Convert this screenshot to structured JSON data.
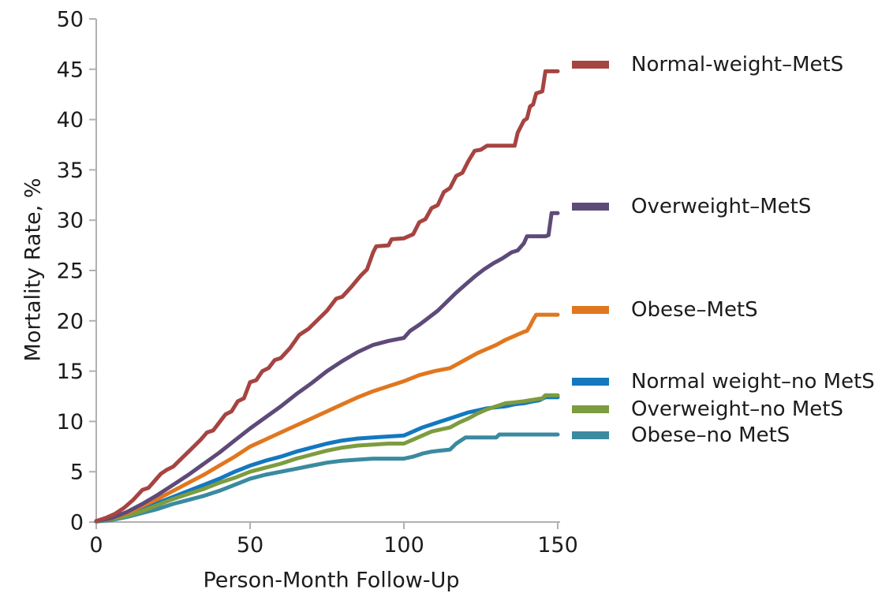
{
  "figure": {
    "background": "#ffffff",
    "axis_color": "#b0b0b0",
    "text_color": "#1c1c1c"
  },
  "chart_data": {
    "type": "line",
    "title": "",
    "xlabel": "Person-Month Follow-Up",
    "ylabel": "Mortality Rate, %",
    "xlim": [
      0,
      150
    ],
    "ylim": [
      0,
      50
    ],
    "x_ticks": [
      0,
      50,
      100,
      150
    ],
    "y_ticks": [
      0,
      5,
      10,
      15,
      20,
      25,
      30,
      35,
      40,
      45,
      50
    ],
    "grid": false,
    "legend_position": "right",
    "series": [
      {
        "name": "Normal-weight–MetS",
        "slug": "normal-weight-mets",
        "color": "#a64442",
        "points": [
          [
            0,
            0.1
          ],
          [
            3,
            0.4
          ],
          [
            6,
            0.8
          ],
          [
            9,
            1.4
          ],
          [
            12,
            2.2
          ],
          [
            15,
            3.2
          ],
          [
            17,
            3.4
          ],
          [
            19,
            4.1
          ],
          [
            21,
            4.8
          ],
          [
            23,
            5.2
          ],
          [
            25,
            5.5
          ],
          [
            28,
            6.4
          ],
          [
            31,
            7.3
          ],
          [
            34,
            8.2
          ],
          [
            36,
            8.9
          ],
          [
            38,
            9.1
          ],
          [
            40,
            9.9
          ],
          [
            42,
            10.7
          ],
          [
            44,
            11.0
          ],
          [
            46,
            12.0
          ],
          [
            48,
            12.3
          ],
          [
            50,
            13.9
          ],
          [
            52,
            14.1
          ],
          [
            54,
            15.0
          ],
          [
            56,
            15.3
          ],
          [
            58,
            16.1
          ],
          [
            60,
            16.3
          ],
          [
            63,
            17.3
          ],
          [
            66,
            18.6
          ],
          [
            69,
            19.2
          ],
          [
            72,
            20.1
          ],
          [
            75,
            21.0
          ],
          [
            78,
            22.2
          ],
          [
            80,
            22.4
          ],
          [
            83,
            23.4
          ],
          [
            86,
            24.5
          ],
          [
            88,
            25.1
          ],
          [
            90,
            26.8
          ],
          [
            91,
            27.4
          ],
          [
            95,
            27.5
          ],
          [
            96,
            28.1
          ],
          [
            100,
            28.2
          ],
          [
            103,
            28.6
          ],
          [
            105,
            29.8
          ],
          [
            107,
            30.1
          ],
          [
            109,
            31.2
          ],
          [
            111,
            31.5
          ],
          [
            113,
            32.8
          ],
          [
            115,
            33.2
          ],
          [
            117,
            34.4
          ],
          [
            119,
            34.7
          ],
          [
            121,
            35.9
          ],
          [
            123,
            36.9
          ],
          [
            125,
            37.0
          ],
          [
            127,
            37.4
          ],
          [
            136,
            37.4
          ],
          [
            137,
            38.7
          ],
          [
            139,
            39.9
          ],
          [
            140,
            40.1
          ],
          [
            141,
            41.3
          ],
          [
            142,
            41.5
          ],
          [
            143,
            42.6
          ],
          [
            145,
            42.8
          ],
          [
            146,
            44.8
          ],
          [
            150,
            44.8
          ]
        ]
      },
      {
        "name": "Overweight–MetS",
        "slug": "overweight-mets",
        "color": "#5e4a78",
        "points": [
          [
            0,
            0.1
          ],
          [
            5,
            0.4
          ],
          [
            10,
            1.0
          ],
          [
            15,
            1.8
          ],
          [
            20,
            2.7
          ],
          [
            25,
            3.7
          ],
          [
            30,
            4.7
          ],
          [
            35,
            5.8
          ],
          [
            40,
            6.9
          ],
          [
            45,
            8.1
          ],
          [
            50,
            9.3
          ],
          [
            55,
            10.4
          ],
          [
            60,
            11.5
          ],
          [
            65,
            12.7
          ],
          [
            70,
            13.8
          ],
          [
            75,
            15.0
          ],
          [
            80,
            16.0
          ],
          [
            85,
            16.9
          ],
          [
            90,
            17.6
          ],
          [
            95,
            18.0
          ],
          [
            100,
            18.3
          ],
          [
            102,
            19.0
          ],
          [
            105,
            19.6
          ],
          [
            108,
            20.3
          ],
          [
            111,
            21.0
          ],
          [
            114,
            21.9
          ],
          [
            117,
            22.8
          ],
          [
            120,
            23.6
          ],
          [
            123,
            24.4
          ],
          [
            126,
            25.1
          ],
          [
            129,
            25.7
          ],
          [
            132,
            26.2
          ],
          [
            135,
            26.8
          ],
          [
            137,
            27.0
          ],
          [
            139,
            27.7
          ],
          [
            140,
            28.4
          ],
          [
            146,
            28.4
          ],
          [
            147,
            28.5
          ],
          [
            148,
            30.7
          ],
          [
            150,
            30.7
          ]
        ]
      },
      {
        "name": "Obese–MetS",
        "slug": "obese-mets",
        "color": "#e0771f",
        "points": [
          [
            0,
            0.1
          ],
          [
            5,
            0.4
          ],
          [
            10,
            0.9
          ],
          [
            15,
            1.6
          ],
          [
            20,
            2.3
          ],
          [
            25,
            3.1
          ],
          [
            30,
            3.9
          ],
          [
            35,
            4.7
          ],
          [
            40,
            5.6
          ],
          [
            45,
            6.5
          ],
          [
            50,
            7.5
          ],
          [
            55,
            8.2
          ],
          [
            60,
            8.9
          ],
          [
            65,
            9.6
          ],
          [
            70,
            10.3
          ],
          [
            75,
            11.0
          ],
          [
            80,
            11.7
          ],
          [
            85,
            12.4
          ],
          [
            90,
            13.0
          ],
          [
            95,
            13.5
          ],
          [
            100,
            14.0
          ],
          [
            105,
            14.6
          ],
          [
            110,
            15.0
          ],
          [
            115,
            15.3
          ],
          [
            118,
            15.8
          ],
          [
            121,
            16.3
          ],
          [
            124,
            16.8
          ],
          [
            127,
            17.2
          ],
          [
            130,
            17.6
          ],
          [
            133,
            18.1
          ],
          [
            136,
            18.5
          ],
          [
            139,
            18.9
          ],
          [
            140,
            19.0
          ],
          [
            141,
            19.5
          ],
          [
            142,
            20.1
          ],
          [
            143,
            20.6
          ],
          [
            150,
            20.6
          ]
        ]
      },
      {
        "name": "Normal weight–no MetS",
        "slug": "normal-weight-no-mets",
        "color": "#1378bf",
        "points": [
          [
            0,
            0.1
          ],
          [
            5,
            0.3
          ],
          [
            10,
            0.7
          ],
          [
            15,
            1.3
          ],
          [
            20,
            1.9
          ],
          [
            25,
            2.5
          ],
          [
            30,
            3.1
          ],
          [
            35,
            3.7
          ],
          [
            40,
            4.3
          ],
          [
            45,
            5.0
          ],
          [
            50,
            5.6
          ],
          [
            55,
            6.1
          ],
          [
            60,
            6.5
          ],
          [
            65,
            7.0
          ],
          [
            70,
            7.4
          ],
          [
            75,
            7.8
          ],
          [
            80,
            8.1
          ],
          [
            85,
            8.3
          ],
          [
            90,
            8.4
          ],
          [
            95,
            8.5
          ],
          [
            100,
            8.6
          ],
          [
            103,
            9.0
          ],
          [
            106,
            9.4
          ],
          [
            109,
            9.7
          ],
          [
            112,
            10.0
          ],
          [
            115,
            10.3
          ],
          [
            118,
            10.6
          ],
          [
            121,
            10.9
          ],
          [
            124,
            11.1
          ],
          [
            127,
            11.3
          ],
          [
            130,
            11.4
          ],
          [
            133,
            11.5
          ],
          [
            136,
            11.7
          ],
          [
            139,
            11.8
          ],
          [
            142,
            12.0
          ],
          [
            144,
            12.1
          ],
          [
            146,
            12.4
          ],
          [
            150,
            12.4
          ]
        ]
      },
      {
        "name": "Overweight–no MetS",
        "slug": "overweight-no-mets",
        "color": "#7d9c3f",
        "points": [
          [
            0,
            0.1
          ],
          [
            5,
            0.3
          ],
          [
            10,
            0.6
          ],
          [
            15,
            1.1
          ],
          [
            20,
            1.7
          ],
          [
            25,
            2.3
          ],
          [
            30,
            2.8
          ],
          [
            35,
            3.3
          ],
          [
            40,
            3.9
          ],
          [
            45,
            4.4
          ],
          [
            50,
            5.0
          ],
          [
            55,
            5.4
          ],
          [
            60,
            5.8
          ],
          [
            65,
            6.3
          ],
          [
            70,
            6.7
          ],
          [
            75,
            7.1
          ],
          [
            80,
            7.4
          ],
          [
            85,
            7.6
          ],
          [
            90,
            7.7
          ],
          [
            95,
            7.8
          ],
          [
            100,
            7.8
          ],
          [
            103,
            8.2
          ],
          [
            106,
            8.6
          ],
          [
            109,
            9.0
          ],
          [
            112,
            9.2
          ],
          [
            115,
            9.4
          ],
          [
            118,
            9.9
          ],
          [
            121,
            10.3
          ],
          [
            124,
            10.8
          ],
          [
            127,
            11.2
          ],
          [
            130,
            11.5
          ],
          [
            133,
            11.8
          ],
          [
            136,
            11.9
          ],
          [
            139,
            12.0
          ],
          [
            141,
            12.1
          ],
          [
            143,
            12.2
          ],
          [
            145,
            12.3
          ],
          [
            146,
            12.6
          ],
          [
            150,
            12.6
          ]
        ]
      },
      {
        "name": "Obese–no MetS",
        "slug": "obese-no-mets",
        "color": "#3a8aa0",
        "points": [
          [
            0,
            0.05
          ],
          [
            5,
            0.2
          ],
          [
            10,
            0.5
          ],
          [
            15,
            0.9
          ],
          [
            20,
            1.3
          ],
          [
            25,
            1.8
          ],
          [
            30,
            2.2
          ],
          [
            35,
            2.6
          ],
          [
            40,
            3.1
          ],
          [
            45,
            3.7
          ],
          [
            50,
            4.3
          ],
          [
            55,
            4.7
          ],
          [
            60,
            5.0
          ],
          [
            65,
            5.3
          ],
          [
            70,
            5.6
          ],
          [
            75,
            5.9
          ],
          [
            80,
            6.1
          ],
          [
            85,
            6.2
          ],
          [
            90,
            6.3
          ],
          [
            95,
            6.3
          ],
          [
            100,
            6.3
          ],
          [
            103,
            6.5
          ],
          [
            106,
            6.8
          ],
          [
            109,
            7.0
          ],
          [
            112,
            7.1
          ],
          [
            115,
            7.2
          ],
          [
            117,
            7.8
          ],
          [
            119,
            8.2
          ],
          [
            120,
            8.4
          ],
          [
            130,
            8.4
          ],
          [
            131,
            8.7
          ],
          [
            150,
            8.7
          ]
        ]
      }
    ]
  }
}
